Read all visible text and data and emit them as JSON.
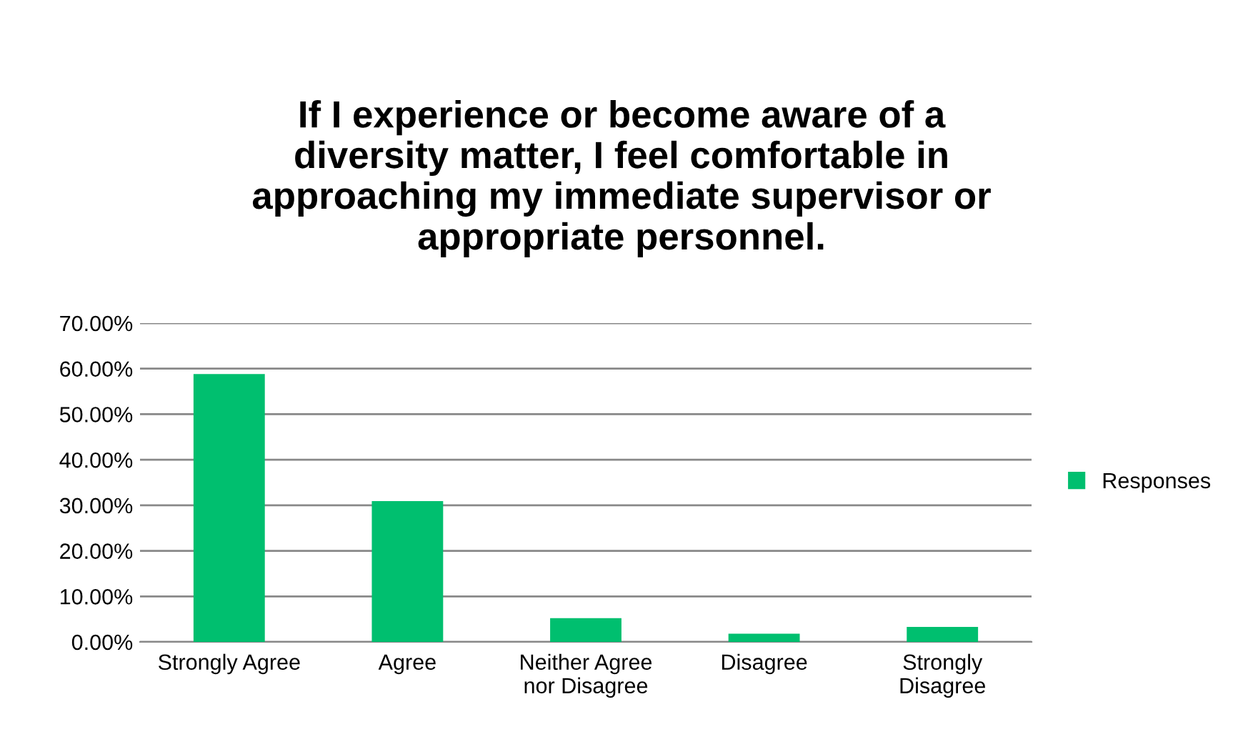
{
  "chart_data": {
    "type": "bar",
    "title": "If I experience or become aware of a diversity matter, I feel comfortable in approaching my immediate supervisor or appropriate personnel.",
    "categories": [
      "Strongly Agree",
      "Agree",
      "Neither Agree nor Disagree",
      "Disagree",
      "Strongly Disagree"
    ],
    "series": [
      {
        "name": "Responses",
        "color": "#00bf6f",
        "values": [
          58.8,
          30.9,
          5.2,
          1.8,
          3.3
        ]
      }
    ],
    "ylim": [
      0,
      70
    ],
    "yticks": [
      {
        "value": 0,
        "label": "0.00%"
      },
      {
        "value": 10,
        "label": "10.00%"
      },
      {
        "value": 20,
        "label": "20.00%"
      },
      {
        "value": 30,
        "label": "30.00%"
      },
      {
        "value": 40,
        "label": "40.00%"
      },
      {
        "value": 50,
        "label": "50.00%"
      },
      {
        "value": 60,
        "label": "60.00%"
      },
      {
        "value": 70,
        "label": "70.00%"
      }
    ],
    "grid": "y",
    "legend": "right"
  }
}
